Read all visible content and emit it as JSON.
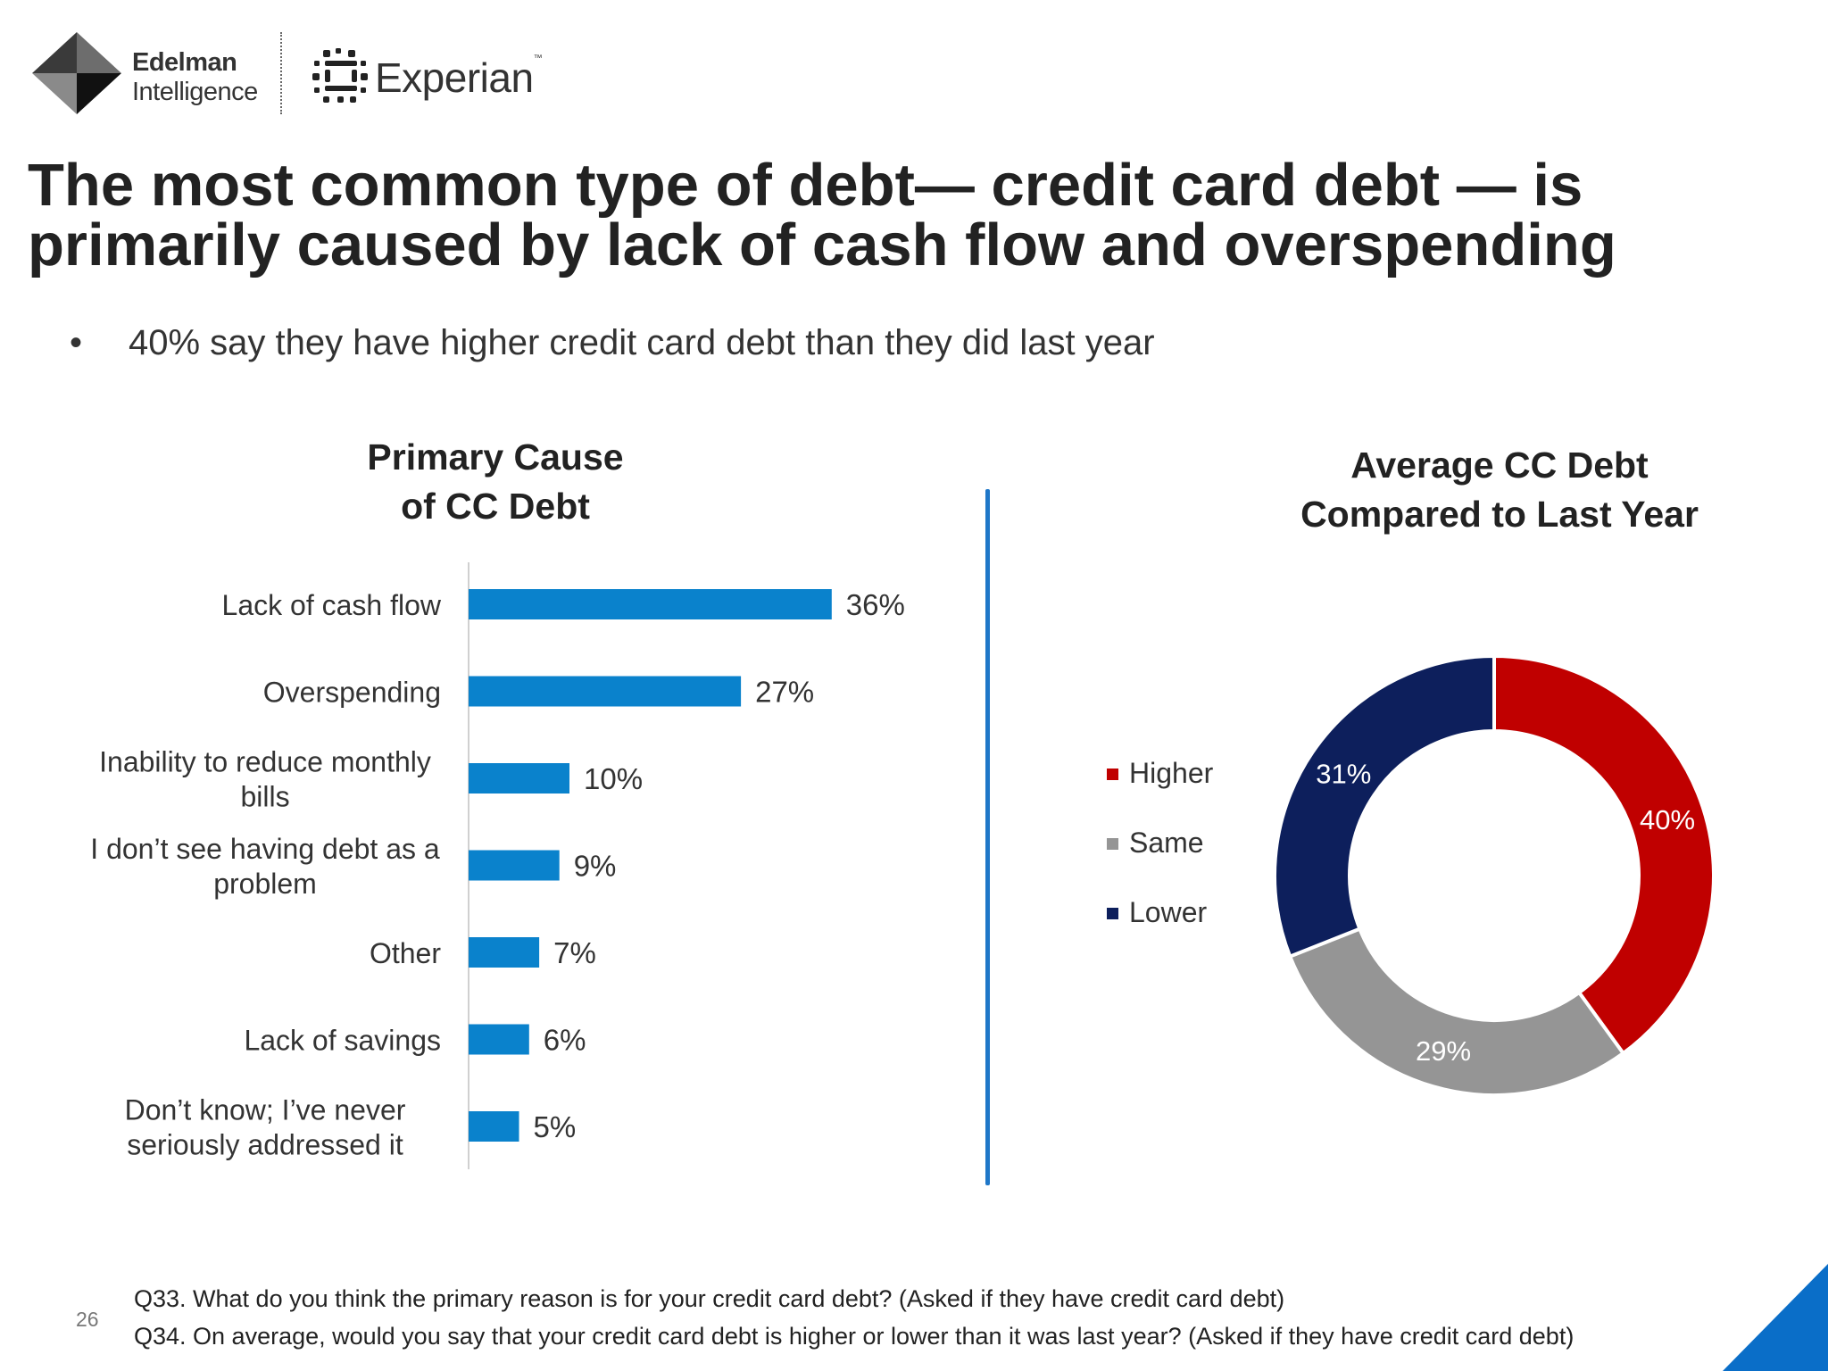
{
  "logos": {
    "edelman_line1": "Edelman",
    "edelman_line2": "Intelligence",
    "experian": "Experian",
    "experian_tm": "™"
  },
  "title": "The most common type of debt— credit card debt — is primarily caused by lack of cash flow and overspending",
  "bullet": {
    "marker": "•",
    "text": "40% say they have higher credit card debt than they did last year"
  },
  "colors": {
    "bar": "#0a82cc",
    "higher": "#c00000",
    "same": "#959595",
    "lower": "#0d1f5c",
    "divider": "#1f77c8",
    "corner": "#0a6ec8"
  },
  "chart_data": [
    {
      "type": "bar",
      "orientation": "horizontal",
      "title_line1": "Primary Cause",
      "title_line2": "of CC Debt",
      "categories": [
        [
          "Lack of cash flow"
        ],
        [
          "Overspending"
        ],
        [
          "Inability to reduce monthly",
          "bills"
        ],
        [
          "I don’t see having debt as a",
          "problem"
        ],
        [
          "Other"
        ],
        [
          "Lack of savings"
        ],
        [
          "Don’t know; I’ve never",
          "seriously addressed it"
        ]
      ],
      "values": [
        36,
        27,
        10,
        9,
        7,
        6,
        5
      ],
      "value_labels": [
        "36%",
        "27%",
        "10%",
        "9%",
        "7%",
        "6%",
        "5%"
      ],
      "unit": "%"
    },
    {
      "type": "pie",
      "variant": "donut",
      "title_line1": "Average CC Debt",
      "title_line2": "Compared to Last Year",
      "legend_placement": "left",
      "slices": [
        {
          "name": "Higher",
          "value": 40,
          "label": "40%",
          "color": "#c00000"
        },
        {
          "name": "Same",
          "value": 29,
          "label": "29%",
          "color": "#959595"
        },
        {
          "name": "Lower",
          "value": 31,
          "label": "31%",
          "color": "#0d1f5c"
        }
      ]
    }
  ],
  "footer": {
    "page_number": "26",
    "notes": [
      "Q33. What do you think the primary reason is for your credit card debt? (Asked if they have credit card debt)",
      "Q34. On average, would you say that your credit card debt is higher or lower than it was last year? (Asked if they have credit card debt)"
    ]
  }
}
